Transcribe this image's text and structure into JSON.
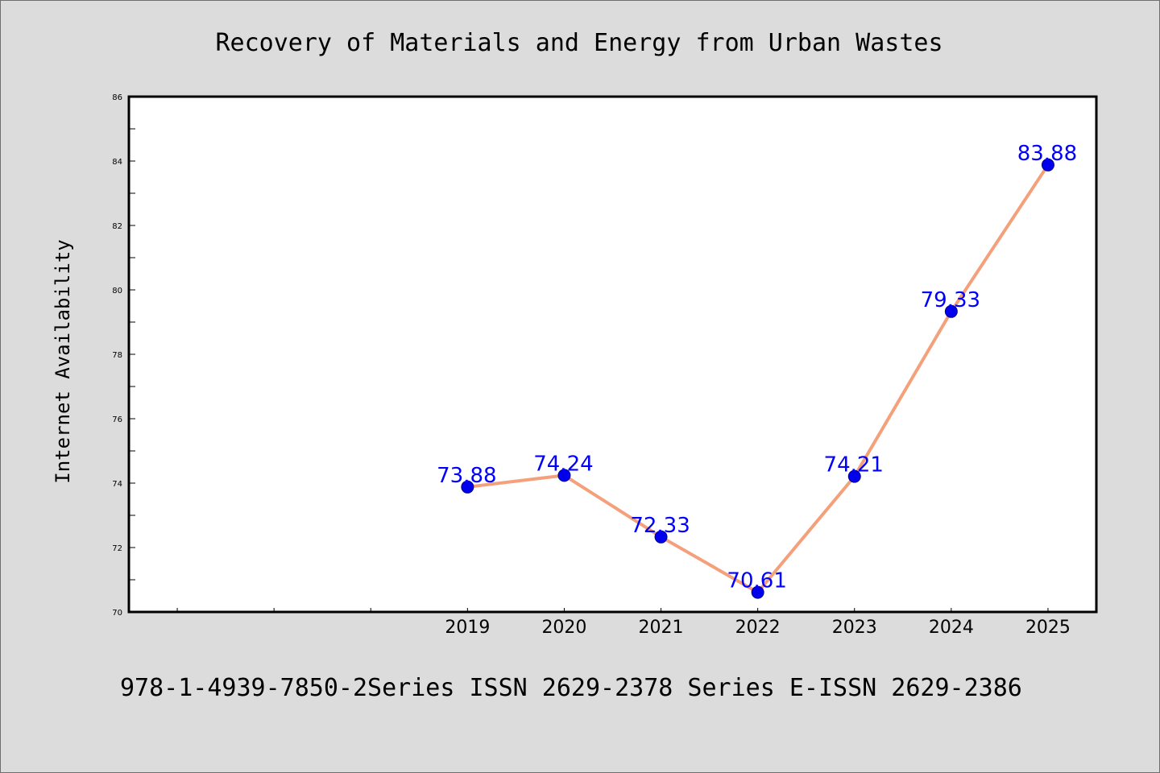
{
  "chart_data": {
    "type": "line",
    "title": "Recovery of Materials and Energy from Urban Wastes",
    "xlabel": "",
    "ylabel": "Internet Availability",
    "categories": [
      "2019",
      "2020",
      "2021",
      "2022",
      "2023",
      "2024",
      "2025"
    ],
    "series": [
      {
        "values": [
          73.88,
          74.24,
          72.33,
          70.61,
          74.21,
          79.33,
          83.88
        ],
        "labels": [
          "73.88",
          "74.24",
          "72.33",
          "70.61",
          "74.21",
          "79.33",
          "83.88"
        ],
        "line_color": "#f4a07a",
        "marker_color": "#0000ee",
        "label_color": "#0000ff"
      }
    ],
    "x_slots": 10,
    "first_category_slot": 3,
    "ylim": [
      70,
      86
    ],
    "yticks": [
      70,
      72,
      74,
      76,
      78,
      80,
      82,
      84,
      86
    ],
    "grid": false,
    "legend": false
  },
  "footer": {
    "text": "978-1-4939-7850-2Series ISSN 2629-2378 Series E-ISSN 2629-2386"
  },
  "colors": {
    "background": "#dcdcdc",
    "plot_background": "#ffffff",
    "axis": "#000000"
  }
}
